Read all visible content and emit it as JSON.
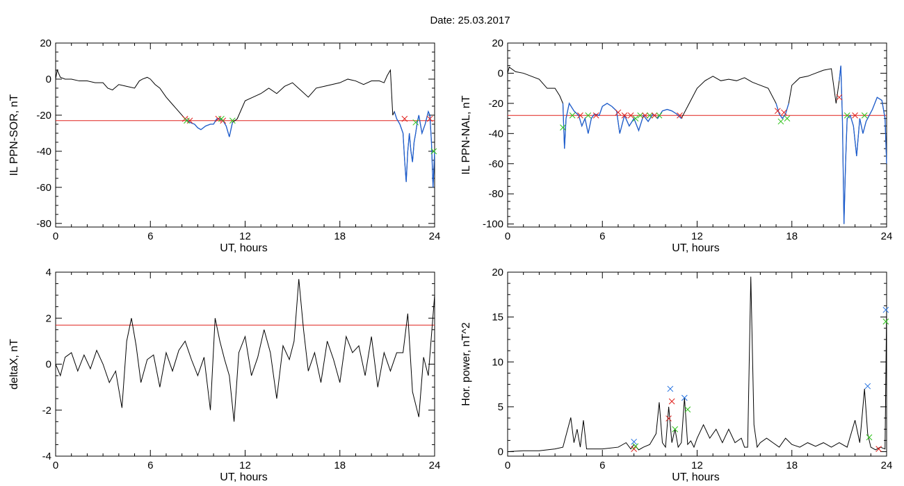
{
  "title": "Date:  25.03.2017",
  "colors": {
    "axis": "#000000",
    "signal": "#000000",
    "selection": "#1f5fd0",
    "threshold": "#e0201c",
    "red_marker": "#e0201c",
    "green_marker": "#2ec21a",
    "blue_marker": "#1f6fe0"
  },
  "chart_data": [
    {
      "type": "line",
      "xlabel": "UT, hours",
      "ylabel": "IL PPN-SOR, nT",
      "xlim": [
        0,
        24
      ],
      "ylim": [
        -82,
        20
      ],
      "xticks": [
        0,
        6,
        12,
        18,
        24
      ],
      "yticks": [
        20,
        0,
        -20,
        -40,
        -60,
        -80
      ],
      "threshold": -23,
      "series": [
        {
          "x": [
            0,
            0.1,
            0.3,
            0.6,
            1,
            1.5,
            2,
            2.5,
            3,
            3.3,
            3.6,
            4,
            4.5,
            5,
            5.3,
            5.5,
            5.8,
            6,
            6.3,
            6.6,
            7,
            7.3,
            7.6,
            8,
            8.2,
            8.5,
            8.8,
            9,
            9.2,
            9.5,
            9.8,
            10,
            10.2,
            10.4,
            10.6,
            10.8,
            11,
            11.2,
            11.5,
            12,
            12.5,
            13,
            13.5,
            14,
            14.5,
            15,
            15.5,
            16,
            16.5,
            17,
            17.5,
            18,
            18.5,
            19,
            19.5,
            20,
            20.5,
            20.8,
            21,
            21.2,
            21.35,
            21.45,
            21.6,
            21.8,
            22,
            22.1,
            22.2,
            22.3,
            22.4,
            22.5,
            22.6,
            22.7,
            22.8,
            22.9,
            23,
            23.1,
            23.2,
            23.4,
            23.6,
            23.7,
            23.8,
            23.9,
            24
          ],
          "y": [
            0,
            5,
            1,
            0,
            0,
            -1,
            -1,
            -2,
            -2,
            -5,
            -6,
            -3,
            -4,
            -5,
            -1,
            0,
            1,
            0,
            -3,
            -5,
            -10,
            -13,
            -16,
            -20,
            -22,
            -24,
            -25,
            -27,
            -28,
            -26,
            -25,
            -25,
            -22,
            -22,
            -23,
            -26,
            -32,
            -24,
            -22,
            -12,
            -10,
            -8,
            -5,
            -8,
            -4,
            -2,
            -6,
            -10,
            -5,
            -4,
            -3,
            -2,
            0,
            -1,
            -3,
            -1,
            -1,
            -2,
            2,
            5,
            -20,
            -18,
            -22,
            -25,
            -30,
            -45,
            -57,
            -40,
            -30,
            -40,
            -46,
            -35,
            -30,
            -24,
            -20,
            -25,
            -30,
            -25,
            -18,
            -20,
            -35,
            -60,
            -40
          ],
          "selection": [
            [
              8.1,
              11.3
            ],
            [
              21.4,
              24
            ]
          ]
        }
      ],
      "markers": [
        {
          "x": 8.2,
          "y": -22,
          "color": "red"
        },
        {
          "x": 8.5,
          "y": -23,
          "color": "red"
        },
        {
          "x": 8.3,
          "y": -23,
          "color": "green"
        },
        {
          "x": 10.3,
          "y": -22,
          "color": "red"
        },
        {
          "x": 10.6,
          "y": -23,
          "color": "red"
        },
        {
          "x": 10.5,
          "y": -22,
          "color": "green"
        },
        {
          "x": 11.2,
          "y": -23,
          "color": "green"
        },
        {
          "x": 22.1,
          "y": -22,
          "color": "red"
        },
        {
          "x": 22.8,
          "y": -24,
          "color": "green"
        },
        {
          "x": 23.7,
          "y": -22,
          "color": "red"
        },
        {
          "x": 23.95,
          "y": -40,
          "color": "green"
        }
      ]
    },
    {
      "type": "line",
      "xlabel": "UT, hours",
      "ylabel": "IL PPN-NAL, nT",
      "xlim": [
        0,
        24
      ],
      "ylim": [
        -102,
        20
      ],
      "xticks": [
        0,
        6,
        12,
        18,
        24
      ],
      "yticks": [
        20,
        0,
        -20,
        -40,
        -60,
        -80,
        -100
      ],
      "threshold": -28,
      "series": [
        {
          "x": [
            0,
            0.1,
            0.5,
            1,
            1.5,
            2,
            2.5,
            3,
            3.3,
            3.5,
            3.6,
            3.7,
            3.9,
            4.2,
            4.5,
            4.7,
            4.9,
            5.1,
            5.3,
            5.5,
            5.8,
            6,
            6.3,
            6.6,
            6.9,
            7.1,
            7.4,
            7.7,
            8,
            8.3,
            8.6,
            8.9,
            9.2,
            9.5,
            9.8,
            10.1,
            10.4,
            10.7,
            11,
            11.5,
            12,
            12.5,
            13,
            13.5,
            14,
            14.5,
            15,
            15.5,
            16,
            16.5,
            17,
            17.2,
            17.4,
            17.6,
            17.8,
            18,
            18.5,
            19,
            19.5,
            20,
            20.5,
            20.8,
            21,
            21.1,
            21.2,
            21.3,
            21.4,
            21.5,
            21.7,
            21.9,
            22.1,
            22.3,
            22.5,
            22.7,
            22.9,
            23.1,
            23.4,
            23.7,
            23.9,
            24
          ],
          "y": [
            0,
            4,
            1,
            0,
            -2,
            -4,
            -10,
            -10,
            -15,
            -20,
            -50,
            -30,
            -20,
            -25,
            -28,
            -35,
            -30,
            -40,
            -30,
            -27,
            -28,
            -22,
            -20,
            -22,
            -25,
            -40,
            -28,
            -35,
            -30,
            -38,
            -28,
            -32,
            -27,
            -30,
            -25,
            -24,
            -25,
            -27,
            -30,
            -20,
            -10,
            -5,
            -2,
            -5,
            -4,
            -5,
            -3,
            -6,
            -8,
            -10,
            -20,
            -27,
            -30,
            -27,
            -20,
            -8,
            -3,
            -2,
            0,
            2,
            3,
            -20,
            -5,
            5,
            -30,
            -100,
            -60,
            -30,
            -28,
            -35,
            -55,
            -30,
            -40,
            -32,
            -28,
            -24,
            -16,
            -18,
            -30,
            -60
          ],
          "selection": [
            [
              3.4,
              11.1
            ],
            [
              16.9,
              17.8
            ],
            [
              20.9,
              24
            ]
          ]
        }
      ],
      "markers": [
        {
          "x": 3.5,
          "y": -36,
          "color": "green"
        },
        {
          "x": 4.1,
          "y": -28,
          "color": "green"
        },
        {
          "x": 4.6,
          "y": -28,
          "color": "red"
        },
        {
          "x": 5.1,
          "y": -28,
          "color": "green"
        },
        {
          "x": 5.6,
          "y": -28,
          "color": "red"
        },
        {
          "x": 7,
          "y": -26,
          "color": "red"
        },
        {
          "x": 7.4,
          "y": -28,
          "color": "red"
        },
        {
          "x": 7.8,
          "y": -28,
          "color": "red"
        },
        {
          "x": 8.1,
          "y": -30,
          "color": "green"
        },
        {
          "x": 8.4,
          "y": -28,
          "color": "green"
        },
        {
          "x": 8.7,
          "y": -28,
          "color": "red"
        },
        {
          "x": 9,
          "y": -28,
          "color": "green"
        },
        {
          "x": 9.3,
          "y": -28,
          "color": "red"
        },
        {
          "x": 9.6,
          "y": -28,
          "color": "green"
        },
        {
          "x": 10.9,
          "y": -28,
          "color": "red"
        },
        {
          "x": 17.1,
          "y": -25,
          "color": "red"
        },
        {
          "x": 17.3,
          "y": -32,
          "color": "green"
        },
        {
          "x": 17.5,
          "y": -26,
          "color": "red"
        },
        {
          "x": 17.7,
          "y": -30,
          "color": "green"
        },
        {
          "x": 21,
          "y": -16,
          "color": "red"
        },
        {
          "x": 21.5,
          "y": -28,
          "color": "green"
        },
        {
          "x": 22,
          "y": -28,
          "color": "red"
        },
        {
          "x": 22.6,
          "y": -28,
          "color": "green"
        }
      ]
    },
    {
      "type": "line",
      "xlabel": "UT, hours",
      "ylabel": "deltaX, nT",
      "xlim": [
        0,
        24
      ],
      "ylim": [
        -4,
        4
      ],
      "xticks": [
        0,
        6,
        12,
        18,
        24
      ],
      "yticks": [
        4,
        2,
        0,
        -2,
        -4
      ],
      "threshold": 1.7,
      "series": [
        {
          "x": [
            0,
            0.3,
            0.6,
            1,
            1.4,
            1.8,
            2.2,
            2.6,
            3,
            3.4,
            3.8,
            4.2,
            4.5,
            4.8,
            5.1,
            5.4,
            5.8,
            6.2,
            6.6,
            7,
            7.4,
            7.8,
            8.2,
            8.6,
            9,
            9.4,
            9.8,
            10.1,
            10.4,
            10.7,
            11,
            11.3,
            11.6,
            12,
            12.4,
            12.8,
            13.2,
            13.6,
            14,
            14.4,
            14.8,
            15.1,
            15.4,
            15.7,
            16,
            16.4,
            16.8,
            17.2,
            17.6,
            18,
            18.4,
            18.8,
            19.2,
            19.6,
            20,
            20.4,
            20.8,
            21.2,
            21.6,
            22,
            22.3,
            22.6,
            23,
            23.3,
            23.6,
            24
          ],
          "y": [
            0,
            -0.5,
            0.3,
            0.5,
            -0.3,
            0.4,
            -0.2,
            0.6,
            0,
            -0.8,
            -0.3,
            -1.9,
            1,
            2,
            0.8,
            -0.8,
            0.2,
            0.4,
            -1,
            0.5,
            -0.3,
            0.6,
            1,
            0.2,
            -0.5,
            0.3,
            -2,
            2,
            1,
            0.2,
            -0.5,
            -2.5,
            0.5,
            1.2,
            -0.5,
            0.3,
            1.5,
            0.5,
            -1.5,
            0.8,
            0.2,
            1,
            3.7,
            1.5,
            -0.3,
            0.5,
            -0.8,
            1,
            0.2,
            -0.8,
            1.2,
            0.5,
            0.8,
            -0.5,
            1.2,
            -1,
            0.5,
            -0.3,
            0.5,
            0.5,
            2.2,
            -1.2,
            -2.3,
            0.3,
            -0.5,
            3
          ]
        }
      ],
      "markers": []
    },
    {
      "type": "line",
      "xlabel": "UT, hours",
      "ylabel": "Hor. power, nT^2",
      "xlim": [
        0,
        24
      ],
      "ylim": [
        -0.5,
        20
      ],
      "xticks": [
        0,
        6,
        12,
        18,
        24
      ],
      "yticks": [
        20,
        15,
        10,
        5,
        0
      ],
      "threshold": null,
      "series": [
        {
          "x": [
            0,
            1,
            2,
            3,
            3.5,
            4,
            4.2,
            4.4,
            4.6,
            4.8,
            5,
            6,
            7,
            7.5,
            7.8,
            8,
            8.3,
            8.6,
            9,
            9.4,
            9.6,
            9.8,
            10,
            10.2,
            10.4,
            10.6,
            10.8,
            11,
            11.2,
            11.4,
            11.6,
            11.8,
            12,
            12.4,
            12.8,
            13.2,
            13.6,
            14,
            14.4,
            14.8,
            15,
            15.2,
            15.4,
            15.6,
            15.8,
            16,
            16.4,
            16.8,
            17.2,
            17.6,
            18,
            18.5,
            19,
            19.5,
            20,
            20.5,
            21,
            21.5,
            22,
            22.3,
            22.6,
            22.8,
            23,
            23.3,
            23.6,
            23.9,
            24
          ],
          "y": [
            0,
            0.1,
            0.1,
            0.3,
            0.5,
            3.8,
            1,
            2.5,
            0.5,
            3.5,
            0.3,
            0.3,
            0.5,
            1,
            0.3,
            0.8,
            0.2,
            0.5,
            0.8,
            2,
            5.5,
            1,
            0.5,
            5,
            1,
            2.5,
            0.5,
            1,
            6,
            0.8,
            1.2,
            0.5,
            1.5,
            3,
            1.5,
            2.5,
            1,
            2.5,
            1,
            1.5,
            0.5,
            0.5,
            19.5,
            3,
            0.5,
            1,
            1.5,
            1,
            0.5,
            1.5,
            0.8,
            0.5,
            1,
            0.6,
            1,
            0.5,
            1,
            0.5,
            3.5,
            1,
            7,
            2,
            0.5,
            0.2,
            0.5,
            0.3,
            16
          ]
        }
      ],
      "markers": [
        {
          "x": 8,
          "y": 0.3,
          "color": "red"
        },
        {
          "x": 8.1,
          "y": 0.6,
          "color": "green"
        },
        {
          "x": 8,
          "y": 1.1,
          "color": "blue"
        },
        {
          "x": 10.2,
          "y": 3.7,
          "color": "red"
        },
        {
          "x": 10.4,
          "y": 5.6,
          "color": "red"
        },
        {
          "x": 10.3,
          "y": 7,
          "color": "blue"
        },
        {
          "x": 10.6,
          "y": 2.5,
          "color": "green"
        },
        {
          "x": 11.2,
          "y": 6,
          "color": "blue"
        },
        {
          "x": 11.4,
          "y": 4.7,
          "color": "green"
        },
        {
          "x": 22.8,
          "y": 7.3,
          "color": "blue"
        },
        {
          "x": 22.9,
          "y": 1.6,
          "color": "green"
        },
        {
          "x": 23.5,
          "y": 0.3,
          "color": "red"
        },
        {
          "x": 23.95,
          "y": 15.8,
          "color": "blue"
        },
        {
          "x": 23.95,
          "y": 14.5,
          "color": "green"
        }
      ]
    }
  ]
}
